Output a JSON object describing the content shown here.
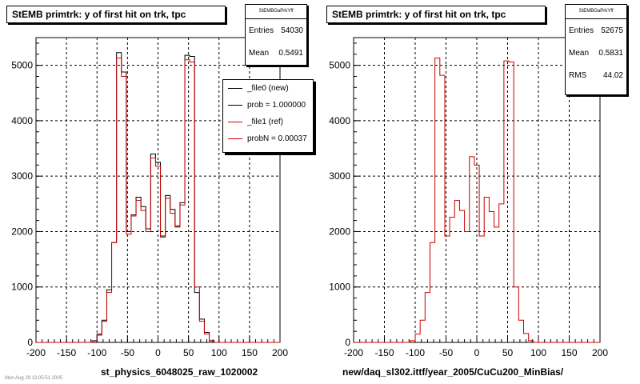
{
  "chart_data": [
    {
      "type": "histogram",
      "title": "StEMB primtrk: y of first hit on trk, tpc",
      "xlabel": "st_physics_6048025_raw_1020002",
      "xlim": [
        -200,
        200
      ],
      "ylim": [
        0,
        5500
      ],
      "x_ticks": [
        -200,
        -150,
        -100,
        -50,
        0,
        50,
        100,
        150,
        200
      ],
      "y_ticks": [
        0,
        1000,
        2000,
        3000,
        4000,
        5000
      ],
      "grid": true,
      "bin_width": 8,
      "series": [
        {
          "name": "_file0 (new)",
          "color": "#000000",
          "bins": [
            {
              "x": -104,
              "y": 30
            },
            {
              "x": -96,
              "y": 150
            },
            {
              "x": -88,
              "y": 400
            },
            {
              "x": -80,
              "y": 950
            },
            {
              "x": -72,
              "y": 1800
            },
            {
              "x": -64,
              "y": 5230
            },
            {
              "x": -56,
              "y": 4880
            },
            {
              "x": -48,
              "y": 2000
            },
            {
              "x": -40,
              "y": 2300
            },
            {
              "x": -32,
              "y": 2620
            },
            {
              "x": -24,
              "y": 2450
            },
            {
              "x": -16,
              "y": 2050
            },
            {
              "x": -8,
              "y": 3400
            },
            {
              "x": 0,
              "y": 3250
            },
            {
              "x": 8,
              "y": 1920
            },
            {
              "x": 16,
              "y": 2650
            },
            {
              "x": 24,
              "y": 2400
            },
            {
              "x": 32,
              "y": 2100
            },
            {
              "x": 40,
              "y": 2520
            },
            {
              "x": 48,
              "y": 5180
            },
            {
              "x": 56,
              "y": 5160
            },
            {
              "x": 64,
              "y": 900
            },
            {
              "x": 72,
              "y": 420
            },
            {
              "x": 80,
              "y": 180
            },
            {
              "x": 88,
              "y": 30
            }
          ]
        },
        {
          "name": "_file1 (ref)",
          "color": "#cc0000",
          "bins": [
            {
              "x": -104,
              "y": 25
            },
            {
              "x": -96,
              "y": 130
            },
            {
              "x": -88,
              "y": 380
            },
            {
              "x": -80,
              "y": 900
            },
            {
              "x": -72,
              "y": 1800
            },
            {
              "x": -64,
              "y": 5130
            },
            {
              "x": -56,
              "y": 4800
            },
            {
              "x": -48,
              "y": 1950
            },
            {
              "x": -40,
              "y": 2280
            },
            {
              "x": -32,
              "y": 2560
            },
            {
              "x": -24,
              "y": 2380
            },
            {
              "x": -16,
              "y": 2000
            },
            {
              "x": -8,
              "y": 3330
            },
            {
              "x": 0,
              "y": 3180
            },
            {
              "x": 8,
              "y": 1900
            },
            {
              "x": 16,
              "y": 2600
            },
            {
              "x": 24,
              "y": 2330
            },
            {
              "x": 32,
              "y": 2080
            },
            {
              "x": 40,
              "y": 2480
            },
            {
              "x": 48,
              "y": 5100
            },
            {
              "x": 56,
              "y": 5060
            },
            {
              "x": 64,
              "y": 1000
            },
            {
              "x": 72,
              "y": 380
            },
            {
              "x": 80,
              "y": 150
            },
            {
              "x": 88,
              "y": 25
            }
          ]
        }
      ],
      "stats": {
        "name": "StEMBGaPrkYff",
        "entries_label": "Entries",
        "entries": "54030",
        "mean_label": "Mean",
        "mean": "0.5491"
      },
      "legend": {
        "placement": "top-right",
        "entries": [
          "_file0 (new)",
          "prob = 1.000000",
          "_file1 (ref)",
          "probN = 0.00037"
        ]
      }
    },
    {
      "type": "histogram",
      "title": "StEMB primtrk: y of first hit on trk, tpc",
      "xlabel": "new/daq_sl302.ittf/year_2005/CuCu200_MinBias/",
      "xlim": [
        -200,
        200
      ],
      "ylim": [
        0,
        5500
      ],
      "x_ticks": [
        -200,
        -150,
        -100,
        -50,
        0,
        50,
        100,
        150,
        200
      ],
      "y_ticks": [
        0,
        1000,
        2000,
        3000,
        4000,
        5000
      ],
      "grid": true,
      "bin_width": 8,
      "series": [
        {
          "name": "",
          "color": "#cc0000",
          "bins": [
            {
              "x": -104,
              "y": 30
            },
            {
              "x": -96,
              "y": 150
            },
            {
              "x": -88,
              "y": 400
            },
            {
              "x": -80,
              "y": 900
            },
            {
              "x": -72,
              "y": 1800
            },
            {
              "x": -64,
              "y": 5130
            },
            {
              "x": -56,
              "y": 4820
            },
            {
              "x": -48,
              "y": 1920
            },
            {
              "x": -40,
              "y": 2260
            },
            {
              "x": -32,
              "y": 2560
            },
            {
              "x": -24,
              "y": 2380
            },
            {
              "x": -16,
              "y": 2000
            },
            {
              "x": -8,
              "y": 3350
            },
            {
              "x": 0,
              "y": 3200
            },
            {
              "x": 8,
              "y": 1920
            },
            {
              "x": 16,
              "y": 2620
            },
            {
              "x": 24,
              "y": 2360
            },
            {
              "x": 32,
              "y": 2080
            },
            {
              "x": 40,
              "y": 2500
            },
            {
              "x": 48,
              "y": 5080
            },
            {
              "x": 56,
              "y": 5060
            },
            {
              "x": 64,
              "y": 1000
            },
            {
              "x": 72,
              "y": 400
            },
            {
              "x": 80,
              "y": 160
            },
            {
              "x": 88,
              "y": 30
            }
          ]
        }
      ],
      "stats": {
        "name": "StEMBGaPrkYff",
        "entries_label": "Entries",
        "entries": "52675",
        "mean_label": "Mean",
        "mean": "0.5831",
        "rms_label": "RMS",
        "rms": "44.02"
      }
    }
  ],
  "footer": "Mon Aug 29 13:05:51 2005"
}
